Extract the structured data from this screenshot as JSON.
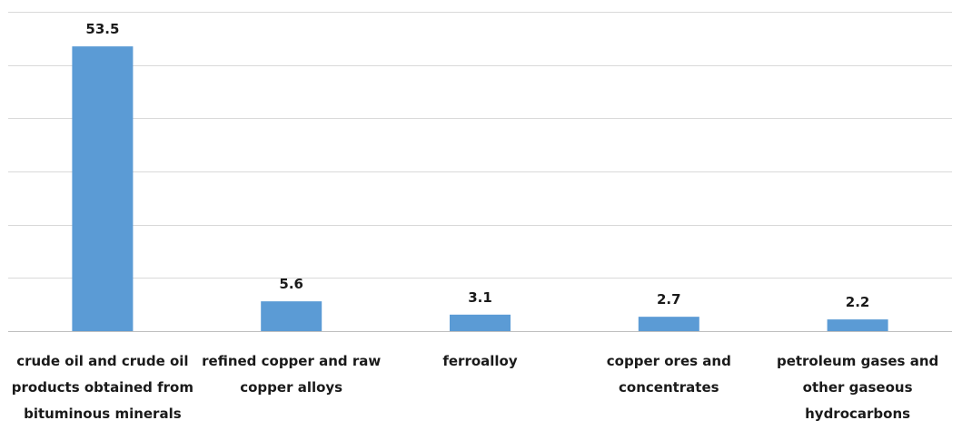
{
  "chart_data": {
    "type": "bar",
    "categories": [
      "crude oil and crude oil products obtained from bituminous minerals",
      "refined copper and raw copper alloys",
      "ferroalloy",
      "copper ores and concentrates",
      "petroleum gases and other gaseous hydrocarbons"
    ],
    "values": [
      53.5,
      5.6,
      3.1,
      2.7,
      2.2
    ],
    "data_labels": [
      "53.5",
      "5.6",
      "3.1",
      "2.7",
      "2.2"
    ],
    "title": "",
    "xlabel": "",
    "ylabel": "",
    "ylim": [
      0,
      60
    ],
    "y_tick_step": 10,
    "grid": true,
    "legend": "none",
    "colors": {
      "bar": "#5b9bd5",
      "grid": "#d9d9d9",
      "axis": "#bfbfbf",
      "text": "#1a1a1a"
    }
  }
}
